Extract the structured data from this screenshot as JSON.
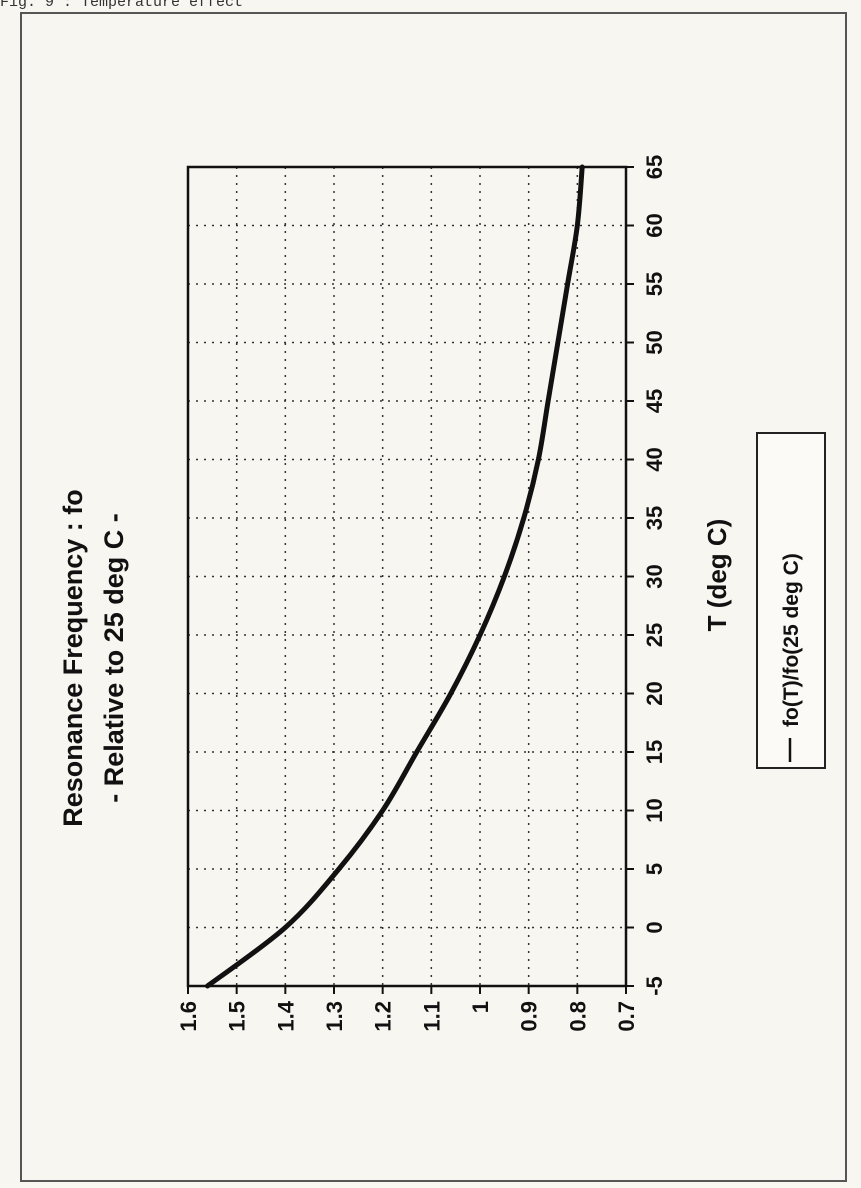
{
  "figure_caption": "Fig. 9 : Temperature effect",
  "chart_data": {
    "type": "line",
    "title": [
      "Resonance Frequency : fo",
      "- Relative to 25 deg C -"
    ],
    "xlabel": "T (deg C)",
    "ylabel": "",
    "xlim": [
      -5,
      65
    ],
    "ylim": [
      0.7,
      1.6
    ],
    "x_ticks": [
      -5,
      0,
      5,
      10,
      15,
      20,
      25,
      30,
      35,
      40,
      45,
      50,
      55,
      60,
      65
    ],
    "y_ticks": [
      0.7,
      0.8,
      0.9,
      1,
      1.1,
      1.2,
      1.3,
      1.4,
      1.5,
      1.6
    ],
    "grid": true,
    "orientation": "rotated-90-ccw",
    "legend_position": "right",
    "series": [
      {
        "name": "fo(T)/fo(25 deg C)",
        "color": "#111111",
        "x": [
          -5,
          0,
          5,
          10,
          15,
          20,
          25,
          30,
          35,
          40,
          45,
          50,
          55,
          60,
          65
        ],
        "y": [
          1.56,
          1.4,
          1.29,
          1.2,
          1.13,
          1.06,
          1.0,
          0.95,
          0.91,
          0.88,
          0.86,
          0.84,
          0.82,
          0.8,
          0.79
        ]
      }
    ]
  }
}
